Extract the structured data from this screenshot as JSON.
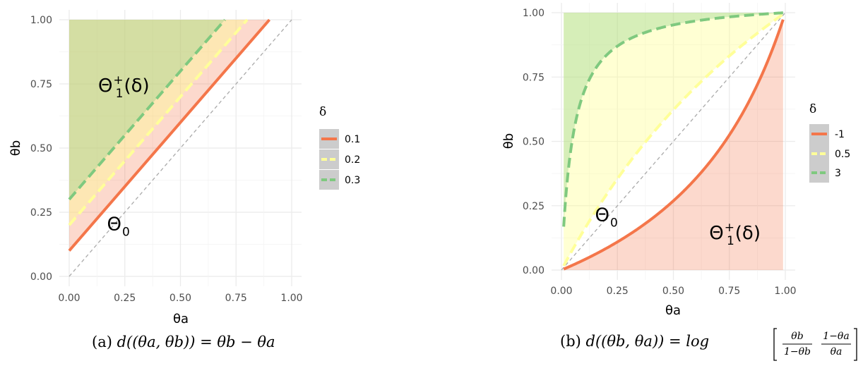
{
  "chart_data": [
    {
      "type": "line",
      "panel_caption": "(a) d((θa, θb)) = θb − θa",
      "caption": {
        "prefix": "(a) ",
        "formula": "d((θa, θb)) = θb − θa"
      },
      "xlabel": "θa",
      "ylabel": "θb",
      "xlim": [
        0,
        1
      ],
      "ylim": [
        0,
        1
      ],
      "xticks": [
        "0.00",
        "0.25",
        "0.50",
        "0.75",
        "1.00"
      ],
      "yticks": [
        "0.00",
        "0.25",
        "0.50",
        "0.75",
        "1.00"
      ],
      "grid": true,
      "legend": {
        "title": "δ",
        "placement": "right",
        "labels": [
          "0.1",
          "0.2",
          "0.3"
        ]
      },
      "series": [
        {
          "name": "0.1",
          "color": "#f4764a",
          "dash": "solid",
          "x": [
            0,
            0.9
          ],
          "y": [
            0.1,
            1.0
          ]
        },
        {
          "name": "0.2",
          "color": "#ffff99",
          "dash": "dashed",
          "x": [
            0,
            0.8
          ],
          "y": [
            0.2,
            1.0
          ]
        },
        {
          "name": "0.3",
          "color": "#7fc97f",
          "dash": "dashed",
          "x": [
            0,
            0.7
          ],
          "y": [
            0.3,
            1.0
          ]
        }
      ],
      "reference_line": {
        "x": [
          0,
          1
        ],
        "y": [
          0,
          1
        ],
        "color": "#aaaaaa",
        "dash": "dashed"
      },
      "annotations": [
        {
          "text": "Θ1+(δ)",
          "main": "Θ",
          "sub": "1",
          "sup": "+",
          "tail": "(δ)",
          "x": 0.13,
          "y": 0.72
        },
        {
          "text": "Θ0",
          "main": "Θ",
          "sub": "0",
          "sup": "",
          "tail": "",
          "x": 0.17,
          "y": 0.18
        }
      ]
    },
    {
      "type": "line",
      "panel_caption": "(b) d((θb, θa)) = log [ θb/(1−θb) · (1−θa)/θa ]",
      "caption": {
        "prefix": "(b) ",
        "formula": "d((θb, θa)) = log",
        "frac1_num": "θb",
        "frac1_den": "1−θb",
        "frac2_num": "1−θa",
        "frac2_den": "θa"
      },
      "xlabel": "θa",
      "ylabel": "θb",
      "xlim": [
        0,
        1
      ],
      "ylim": [
        0,
        1
      ],
      "xticks": [
        "0.00",
        "0.25",
        "0.50",
        "0.75",
        "1.00"
      ],
      "yticks": [
        "0.00",
        "0.25",
        "0.50",
        "0.75",
        "1.00"
      ],
      "grid": true,
      "legend": {
        "title": "δ",
        "placement": "right",
        "labels": [
          "-1",
          "0.5",
          "3"
        ]
      },
      "series": [
        {
          "name": "-1",
          "color": "#f4764a",
          "dash": "solid",
          "logodds": -1
        },
        {
          "name": "0.5",
          "color": "#ffff99",
          "dash": "dashed",
          "logodds": 0.5
        },
        {
          "name": "3",
          "color": "#7fc97f",
          "dash": "dashed",
          "logodds": 3
        }
      ],
      "reference_line": {
        "x": [
          0,
          1
        ],
        "y": [
          0,
          1
        ],
        "color": "#aaaaaa",
        "dash": "dashed"
      },
      "annotations": [
        {
          "text": "Θ0",
          "main": "Θ",
          "sub": "0",
          "sup": "",
          "tail": "",
          "x": 0.15,
          "y": 0.19
        },
        {
          "text": "Θ1+(δ)",
          "main": "Θ",
          "sub": "1",
          "sup": "+",
          "tail": "(δ)",
          "x": 0.66,
          "y": 0.12
        }
      ]
    }
  ],
  "colors": {
    "grid": "#ebebeb",
    "legend_key_bg": "#cccccc",
    "ref_line": "#aaaaaa"
  }
}
